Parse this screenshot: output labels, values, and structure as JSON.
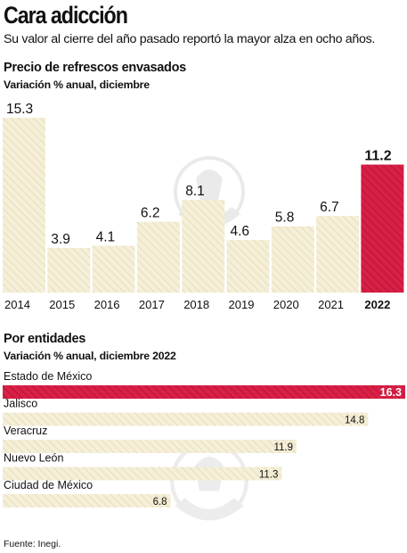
{
  "header": {
    "title": "Cara adicción",
    "subtitle": "Su valor al cierre del año pasado reportó la mayor alza en ocho años."
  },
  "section1": {
    "title": "Precio de refrescos envasados",
    "subtitle": "Variación % anual, diciembre"
  },
  "section2": {
    "title": "Por entidades",
    "subtitle": "Variación % anual, diciembre 2022"
  },
  "source": "Fuente: Inegi.",
  "colors": {
    "hatch_fill": "#f5efd9",
    "hatch_line": "#e4d9b0",
    "highlight": "#d81f45",
    "highlight_line": "#a8122f"
  },
  "chart_data": [
    {
      "type": "bar",
      "title": "Precio de refrescos envasados",
      "subtitle": "Variación % anual, diciembre",
      "categories": [
        "2014",
        "2015",
        "2016",
        "2017",
        "2018",
        "2019",
        "2020",
        "2021",
        "2022"
      ],
      "values": [
        15.3,
        3.9,
        4.1,
        6.2,
        8.1,
        4.6,
        5.8,
        6.7,
        11.2
      ],
      "value_labels": [
        "15.3",
        "3.9",
        "4.1",
        "6.2",
        "8.1",
        "4.6",
        "5.8",
        "6.7",
        "11.2"
      ],
      "highlight": "2022",
      "ylim": [
        0,
        15.3
      ],
      "grid": false
    },
    {
      "type": "bar",
      "orientation": "horizontal",
      "title": "Por entidades",
      "subtitle": "Variación % anual, diciembre 2022",
      "categories": [
        "Estado de México",
        "Jalisco",
        "Veracruz",
        "Nuevo León",
        "Ciudad de México"
      ],
      "values": [
        16.3,
        14.8,
        11.9,
        11.3,
        6.8
      ],
      "value_labels": [
        "16.3",
        "14.8",
        "11.9",
        "11.3",
        "6.8"
      ],
      "highlight": "Estado de México",
      "xlim": [
        0,
        16.3
      ],
      "grid": false
    }
  ]
}
